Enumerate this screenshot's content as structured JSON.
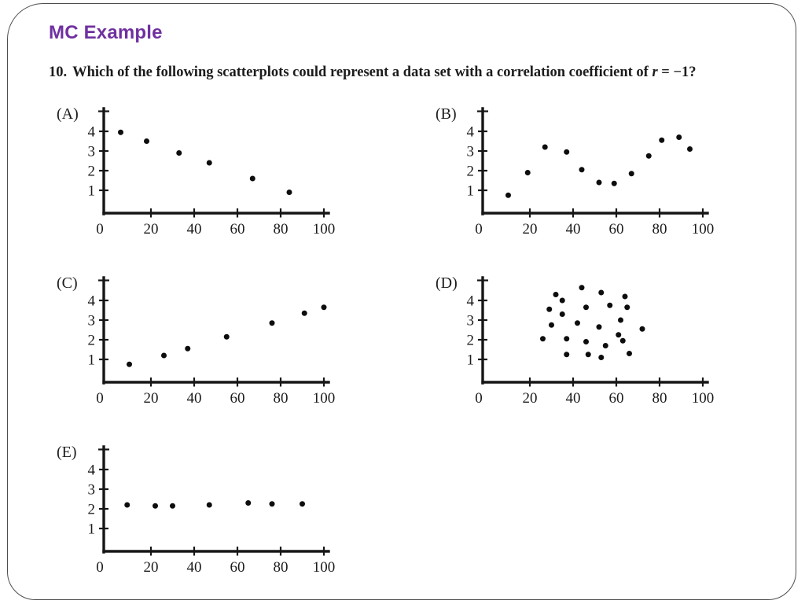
{
  "slide": {
    "title": "MC Example",
    "accent_color": "#7030A0",
    "background_color": "#ffffff",
    "border_color": "#4d4d4d"
  },
  "question": {
    "number": "10.",
    "body": "Which of the following scatterplots could represent a data set with a correlation coefficient of ",
    "variable": "r",
    "value": " = −1?"
  },
  "chart_data": [
    {
      "type": "scatter",
      "label": "(A)",
      "xticks": [
        0,
        20,
        40,
        60,
        80,
        100
      ],
      "yticks": [
        1,
        2,
        3,
        4
      ],
      "xlim": [
        0,
        105
      ],
      "ylim": [
        0,
        5
      ],
      "grid": false,
      "points": [
        [
          6,
          3.95
        ],
        [
          18,
          3.5
        ],
        [
          33,
          2.9
        ],
        [
          47,
          2.4
        ],
        [
          67,
          1.6
        ],
        [
          84,
          0.9
        ]
      ]
    },
    {
      "type": "scatter",
      "label": "(B)",
      "xticks": [
        0,
        20,
        40,
        60,
        80,
        100
      ],
      "yticks": [
        1,
        2,
        3,
        4
      ],
      "xlim": [
        0,
        105
      ],
      "ylim": [
        0,
        5
      ],
      "grid": false,
      "points": [
        [
          10,
          0.75
        ],
        [
          19,
          1.9
        ],
        [
          27,
          3.2
        ],
        [
          37,
          2.95
        ],
        [
          44,
          2.05
        ],
        [
          52,
          1.4
        ],
        [
          59,
          1.35
        ],
        [
          67,
          1.85
        ],
        [
          75,
          2.75
        ],
        [
          81,
          3.55
        ],
        [
          89,
          3.7
        ],
        [
          94,
          3.1
        ]
      ]
    },
    {
      "type": "scatter",
      "label": "(C)",
      "xticks": [
        0,
        20,
        40,
        60,
        80,
        100
      ],
      "yticks": [
        1,
        2,
        3,
        4
      ],
      "xlim": [
        0,
        105
      ],
      "ylim": [
        0,
        5
      ],
      "grid": false,
      "points": [
        [
          10,
          0.75
        ],
        [
          26,
          1.2
        ],
        [
          37,
          1.55
        ],
        [
          55,
          2.15
        ],
        [
          76,
          2.85
        ],
        [
          91,
          3.35
        ],
        [
          100,
          3.65
        ]
      ]
    },
    {
      "type": "scatter",
      "label": "(D)",
      "xticks": [
        0,
        20,
        40,
        60,
        80,
        100
      ],
      "yticks": [
        1,
        2,
        3,
        4
      ],
      "xlim": [
        0,
        105
      ],
      "ylim": [
        0,
        5
      ],
      "grid": false,
      "points": [
        [
          26,
          2.05
        ],
        [
          29,
          3.55
        ],
        [
          30,
          2.75
        ],
        [
          32,
          4.3
        ],
        [
          35,
          4.0
        ],
        [
          35,
          3.3
        ],
        [
          37,
          2.05
        ],
        [
          37,
          1.25
        ],
        [
          42,
          2.85
        ],
        [
          44,
          4.65
        ],
        [
          46,
          3.65
        ],
        [
          46,
          1.9
        ],
        [
          47,
          1.25
        ],
        [
          52,
          2.65
        ],
        [
          53,
          4.4
        ],
        [
          53,
          1.1
        ],
        [
          55,
          1.7
        ],
        [
          57,
          3.75
        ],
        [
          61,
          2.25
        ],
        [
          62,
          3.0
        ],
        [
          63,
          1.95
        ],
        [
          64,
          4.2
        ],
        [
          65,
          3.65
        ],
        [
          66,
          1.3
        ],
        [
          72,
          2.55
        ]
      ]
    },
    {
      "type": "scatter",
      "label": "(E)",
      "xticks": [
        0,
        20,
        40,
        60,
        80,
        100
      ],
      "yticks": [
        1,
        2,
        3,
        4
      ],
      "xlim": [
        0,
        105
      ],
      "ylim": [
        0,
        5
      ],
      "grid": false,
      "points": [
        [
          9,
          2.2
        ],
        [
          22,
          2.15
        ],
        [
          30,
          2.15
        ],
        [
          47,
          2.2
        ],
        [
          65,
          2.3
        ],
        [
          76,
          2.25
        ],
        [
          90,
          2.25
        ]
      ]
    }
  ]
}
